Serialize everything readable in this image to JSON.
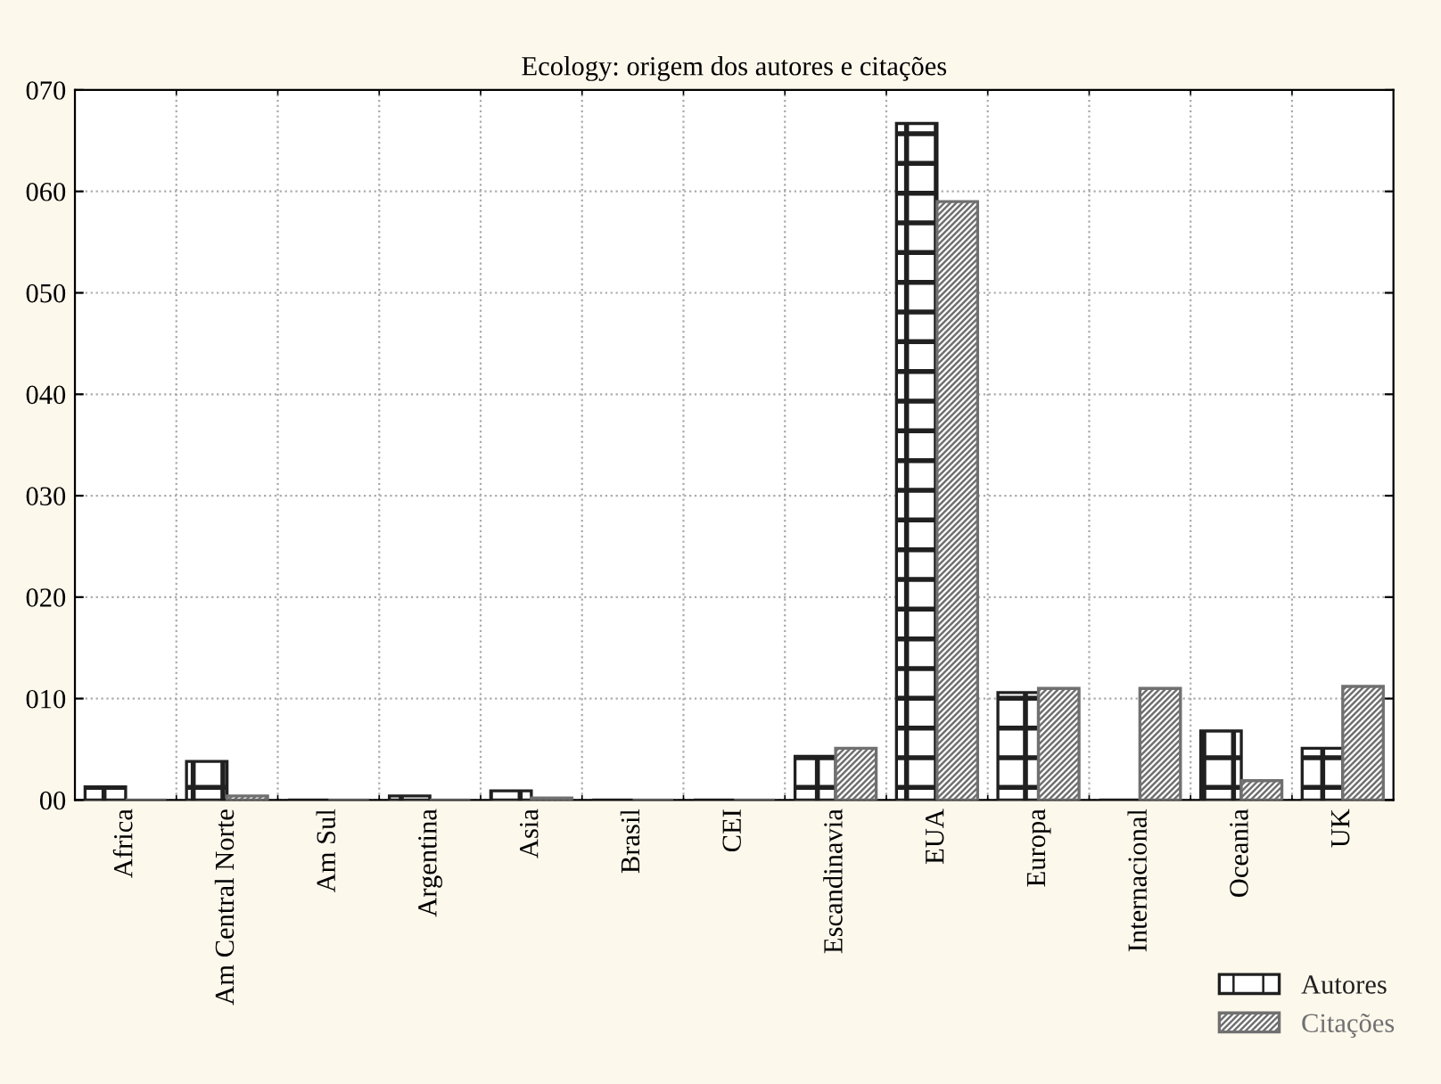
{
  "chart_data": {
    "type": "bar",
    "title": "Ecology: origem dos autores e citações",
    "categories": [
      "Africa",
      "Am Central Norte",
      "Am Sul",
      "Argentina",
      "Asia",
      "Brasil",
      "CEI",
      "Escandinavia",
      "EUA",
      "Europa",
      "Internacional",
      "Oceania",
      "UK"
    ],
    "series": [
      {
        "name": "Autores",
        "color": "#202020",
        "values": [
          1.3,
          3.8,
          0,
          0.4,
          0.9,
          0,
          0,
          4.3,
          66.7,
          10.6,
          0,
          6.8,
          5.1
        ]
      },
      {
        "name": "Citações",
        "color": "#707070",
        "values": [
          0,
          0.4,
          0,
          0,
          0.2,
          0,
          0,
          5.1,
          59.0,
          11.0,
          11.0,
          1.9,
          11.2
        ]
      }
    ],
    "ylim": [
      0,
      70
    ],
    "yticks": [
      {
        "value": 0,
        "label": "00"
      },
      {
        "value": 10,
        "label": "010"
      },
      {
        "value": 20,
        "label": "020"
      },
      {
        "value": 30,
        "label": "030"
      },
      {
        "value": 40,
        "label": "040"
      },
      {
        "value": 50,
        "label": "050"
      },
      {
        "value": 60,
        "label": "060"
      },
      {
        "value": 70,
        "label": "070"
      }
    ],
    "grid": true,
    "legend": "bottom right"
  }
}
